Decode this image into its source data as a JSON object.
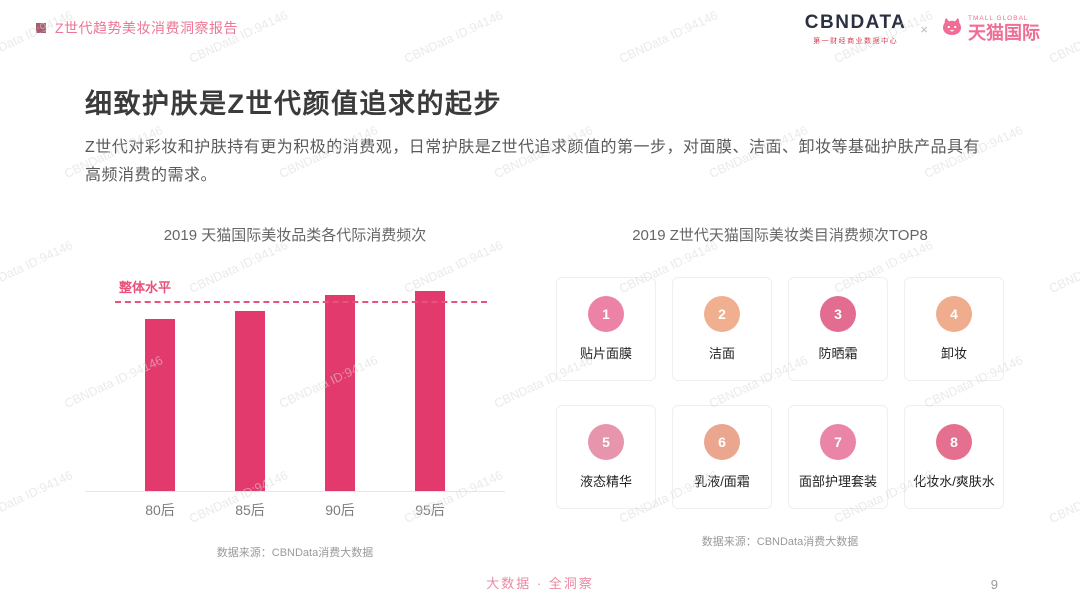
{
  "watermark": {
    "text": "CBNData ID:94146"
  },
  "header": {
    "report_title": "Z世代趋势美妆消费洞察报告",
    "cbndata": {
      "wordmark": "CBNDATA",
      "subtitle": "第一财经商业数据中心"
    },
    "separator": "×",
    "tmall": {
      "wordmark": "天猫国际",
      "subtitle": "TMALL GLOBAL"
    }
  },
  "content": {
    "title": "细致护肤是Z世代颜值追求的起步",
    "body": "Z世代对彩妆和护肤持有更为积极的消费观，日常护肤是Z世代追求颜值的第一步，对面膜、洁面、卸妆等基础护肤产品具有高频消费的需求。"
  },
  "chart_data": [
    {
      "type": "bar",
      "title": "2019 天猫国际美妆品类各代际消费频次",
      "categories": [
        "80后",
        "85后",
        "90后",
        "95后"
      ],
      "values": [
        86,
        90,
        98,
        100
      ],
      "ylim": [
        0,
        105
      ],
      "grid": false,
      "bar_color": "#e23a6d",
      "reference_line": {
        "label": "整体水平",
        "value": 94,
        "color": "#e8537c"
      },
      "source_note": "数据来源：CBNData消费大数据"
    },
    {
      "type": "table",
      "title": "2019 Z世代天猫国际美妆类目消费频次TOP8",
      "items": [
        {
          "rank": 1,
          "label": "贴片面膜",
          "color": "#ec82a6"
        },
        {
          "rank": 2,
          "label": "洁面",
          "color": "#f0b08f"
        },
        {
          "rank": 3,
          "label": "防晒霜",
          "color": "#e36d90"
        },
        {
          "rank": 4,
          "label": "卸妆",
          "color": "#efad8d"
        },
        {
          "rank": 5,
          "label": "液态精华",
          "color": "#e795ad"
        },
        {
          "rank": 6,
          "label": "乳液/面霜",
          "color": "#eaa68f"
        },
        {
          "rank": 7,
          "label": "面部护理套装",
          "color": "#ea85a8"
        },
        {
          "rank": 8,
          "label": "化妆水/爽肤水",
          "color": "#e56f8e"
        }
      ],
      "source_note": "数据来源：CBNData消费大数据"
    }
  ],
  "footer": {
    "tagline": "大数据 · 全洞察",
    "page_number": "9"
  }
}
